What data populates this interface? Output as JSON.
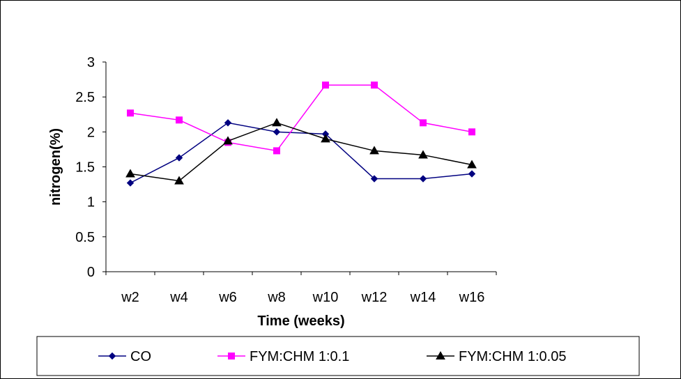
{
  "chart_data": {
    "type": "line",
    "title": "",
    "xlabel": "Time (weeks)",
    "ylabel": "nitrogen(%)",
    "categories": [
      "w2",
      "w4",
      "w6",
      "w8",
      "w10",
      "w12",
      "w14",
      "w16"
    ],
    "ylim": [
      0,
      3
    ],
    "yticks": [
      0,
      0.5,
      1,
      1.5,
      2,
      2.5,
      3
    ],
    "ytick_labels": [
      "0",
      "0.5",
      "1",
      "1.5",
      "2",
      "2.5",
      "3"
    ],
    "grid": false,
    "legend_position": "bottom",
    "series": [
      {
        "name": "CO",
        "color": "#000080",
        "marker": "diamond",
        "values": [
          1.27,
          1.63,
          2.13,
          2.0,
          1.97,
          1.33,
          1.33,
          1.4
        ]
      },
      {
        "name": "FYM:CHM 1:0.1",
        "color": "#FF00FF",
        "marker": "square",
        "values": [
          2.27,
          2.17,
          1.85,
          1.73,
          2.67,
          2.67,
          2.13,
          2.0
        ]
      },
      {
        "name": "FYM:CHM 1:0.05",
        "color": "#000000",
        "marker": "triangle",
        "values": [
          1.4,
          1.3,
          1.87,
          2.13,
          1.9,
          1.73,
          1.67,
          1.53
        ]
      }
    ]
  }
}
